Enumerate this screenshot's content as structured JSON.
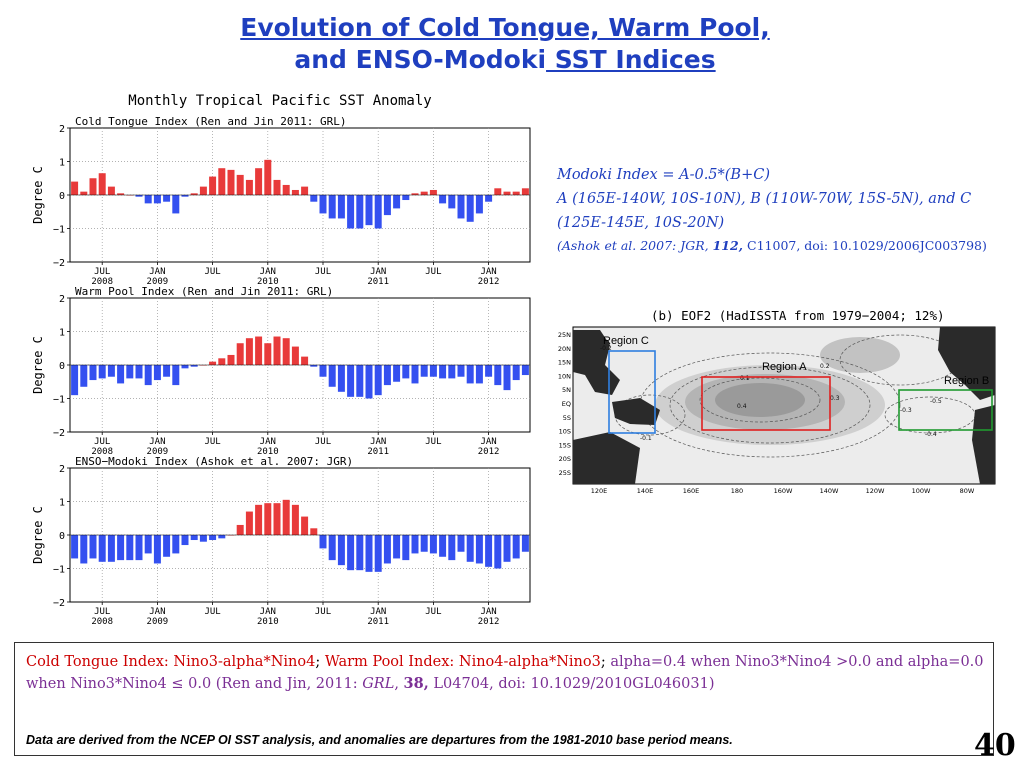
{
  "title": {
    "line1": "Evolution of Cold Tongue, Warm Pool,",
    "line2_plain": "and ENSO-Modoki",
    "line2_underlined": " SST Indices"
  },
  "figure_title": "Monthly Tropical Pacific SST Anomaly",
  "x_tick_labels": [
    {
      "month": "JUL",
      "year": "2008"
    },
    {
      "month": "JAN",
      "year": "2009"
    },
    {
      "month": "JUL",
      "year": ""
    },
    {
      "month": "JAN",
      "year": "2010"
    },
    {
      "month": "JUL",
      "year": ""
    },
    {
      "month": "JAN",
      "year": "2011"
    },
    {
      "month": "JUL",
      "year": ""
    },
    {
      "month": "JAN",
      "year": "2012"
    }
  ],
  "chart_data": [
    {
      "type": "bar",
      "title": "Cold Tongue Index (Ren and Jin 2011: GRL)",
      "ylabel": "Degree C",
      "xlabel": "",
      "ylim": [
        -2,
        2
      ],
      "yticks": [
        "2",
        "1",
        "0",
        "−1",
        "−2"
      ],
      "grid": true,
      "positive_color": "#e83a3a",
      "negative_color": "#3450f0",
      "x_start": "2008-04",
      "values": [
        0.4,
        0.1,
        0.5,
        0.65,
        0.25,
        0.05,
        0.0,
        -0.05,
        -0.25,
        -0.25,
        -0.2,
        -0.55,
        -0.05,
        0.05,
        0.25,
        0.55,
        0.8,
        0.75,
        0.6,
        0.45,
        0.8,
        1.05,
        0.45,
        0.3,
        0.15,
        0.25,
        -0.2,
        -0.55,
        -0.7,
        -0.7,
        -1.0,
        -1.0,
        -0.9,
        -1.0,
        -0.6,
        -0.4,
        -0.15,
        0.05,
        0.1,
        0.15,
        -0.25,
        -0.4,
        -0.7,
        -0.8,
        -0.55,
        -0.2,
        0.2,
        0.1,
        0.1,
        0.2
      ]
    },
    {
      "type": "bar",
      "title": "Warm Pool Index (Ren and Jin 2011: GRL)",
      "ylabel": "Degree C",
      "xlabel": "",
      "ylim": [
        -2,
        2
      ],
      "yticks": [
        "2",
        "1",
        "0",
        "−1",
        "−2"
      ],
      "grid": true,
      "positive_color": "#e83a3a",
      "negative_color": "#3450f0",
      "x_start": "2008-04",
      "values": [
        -0.9,
        -0.65,
        -0.45,
        -0.4,
        -0.35,
        -0.55,
        -0.4,
        -0.4,
        -0.6,
        -0.45,
        -0.35,
        -0.6,
        -0.1,
        -0.05,
        0.0,
        0.1,
        0.2,
        0.3,
        0.65,
        0.8,
        0.85,
        0.65,
        0.85,
        0.8,
        0.55,
        0.25,
        -0.05,
        -0.35,
        -0.65,
        -0.8,
        -0.95,
        -0.95,
        -1.0,
        -0.9,
        -0.6,
        -0.5,
        -0.4,
        -0.55,
        -0.35,
        -0.35,
        -0.4,
        -0.4,
        -0.35,
        -0.55,
        -0.55,
        -0.35,
        -0.6,
        -0.75,
        -0.45,
        -0.3
      ]
    },
    {
      "type": "bar",
      "title": "ENSO−Modoki Index (Ashok et al. 2007: JGR)",
      "ylabel": "Degree C",
      "xlabel": "",
      "ylim": [
        -2,
        2
      ],
      "yticks": [
        "2",
        "1",
        "0",
        "−1",
        "−2"
      ],
      "grid": true,
      "positive_color": "#e83a3a",
      "negative_color": "#3450f0",
      "x_start": "2008-04",
      "values": [
        -0.7,
        -0.85,
        -0.7,
        -0.8,
        -0.8,
        -0.75,
        -0.75,
        -0.75,
        -0.55,
        -0.85,
        -0.65,
        -0.55,
        -0.3,
        -0.15,
        -0.2,
        -0.15,
        -0.1,
        0.0,
        0.3,
        0.7,
        0.9,
        0.95,
        0.95,
        1.05,
        0.9,
        0.55,
        0.2,
        -0.4,
        -0.75,
        -0.9,
        -1.05,
        -1.05,
        -1.1,
        -1.1,
        -0.85,
        -0.7,
        -0.75,
        -0.55,
        -0.5,
        -0.55,
        -0.65,
        -0.75,
        -0.5,
        -0.8,
        -0.85,
        -0.95,
        -1.0,
        -0.8,
        -0.7,
        -0.5
      ]
    }
  ],
  "modoki": {
    "formula": "Modoki Index = A-0.5*(B+C)",
    "regions_line1": "A (165E-140W, 10S-10N), B (110W-70W, 15S-5N), and C",
    "regions_line2": "(125E-145E, 10S-20N)",
    "citation_authors": "(Ashok et al. 2007:  JGR, ",
    "citation_volume": "112,",
    "citation_rest": " C11007, doi: 10.1029/2006JC003798)"
  },
  "map": {
    "title": "(b) EOF2 (HadISSTA from 1979−2004; 12%)",
    "region_a_label": "Region A",
    "region_b_label": "Region B",
    "region_c_label": "Region C",
    "region_a_color": "#e02020",
    "region_b_color": "#209a30",
    "region_c_color": "#2f7fe0",
    "lat_labels": [
      "25N",
      "20N",
      "15N",
      "10N",
      "5N",
      "EQ",
      "5S",
      "10S",
      "15S",
      "20S",
      "25S"
    ],
    "lon_labels": [
      "120E",
      "140E",
      "160E",
      "180",
      "160W",
      "140W",
      "120W",
      "100W",
      "80W"
    ],
    "contour_labels": [
      "-0.2",
      "-0.1",
      "0.1",
      "0.2",
      "0.3",
      "0.4",
      "-0.3",
      "-0.4",
      "-0.5"
    ]
  },
  "bottom": {
    "ct_def": "Cold Tongue Index: Nino3-alpha*Nino4",
    "sep1": "; ",
    "wp_def": "Warm Pool Index: Nino4-alpha*Nino3",
    "sep2": "; ",
    "alpha_text": "alpha=0.4 when Nino3*Nino4 >0.0 and alpha=0.0 when Nino3*Nino4 ≤ 0.0 (Ren and Jin, 2011: ",
    "journal": "GRL",
    "comma": ", ",
    "volume": "38,",
    "rest": " L04704, doi: 10.1029/2010GL046031)",
    "footnote": "Data are derived from the NCEP OI SST analysis, and anomalies are departures from the 1981-2010 base period means."
  },
  "page_number": "40"
}
